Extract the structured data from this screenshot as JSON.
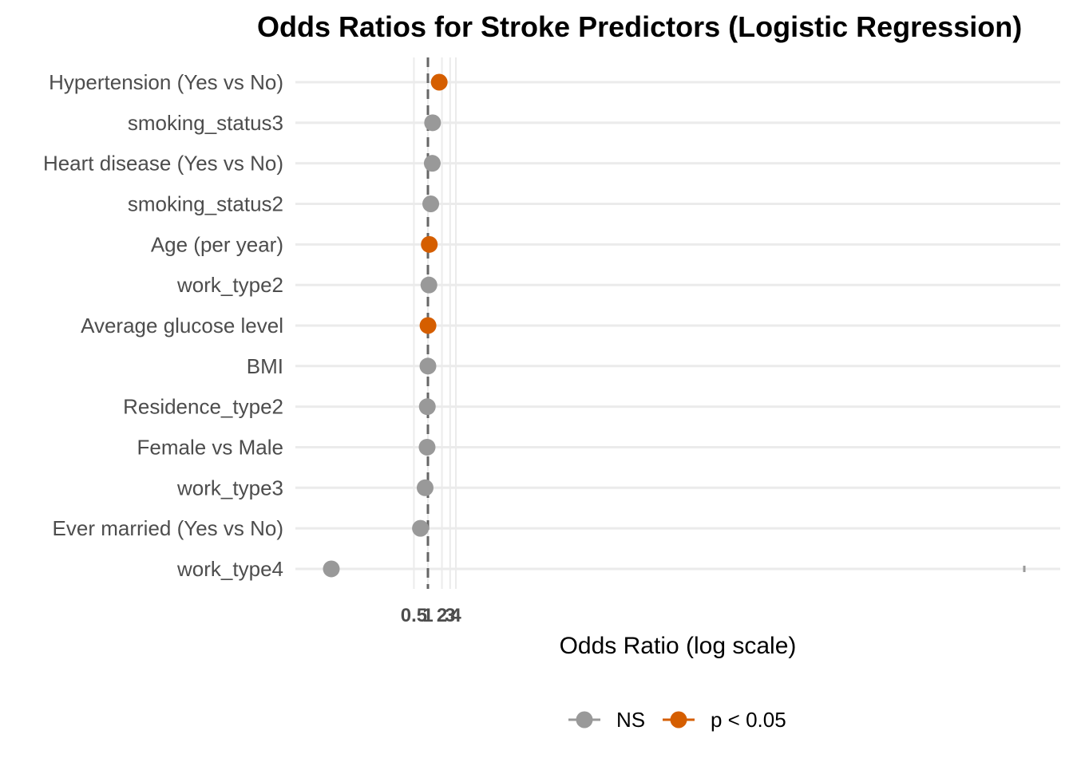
{
  "chart_data": {
    "type": "scatter",
    "title": "Odds Ratios for Stroke Predictors (Logistic Regression)",
    "xlabel": "Odds Ratio (log scale)",
    "ylabel": "",
    "x_scale": "log",
    "x_tick_labels": [
      "0.5",
      "1",
      "2",
      "3",
      "4"
    ],
    "reference_line_x": 1,
    "legend": {
      "placement": "bottom",
      "entries": [
        {
          "name": "NS",
          "color": "#999999"
        },
        {
          "name": "p < 0.05",
          "color": "#d55e00"
        }
      ]
    },
    "categories": [
      "Hypertension (Yes vs No)",
      "smoking_status3",
      "Heart disease (Yes vs No)",
      "smoking_status2",
      "Age (per year)",
      "work_type2",
      "Average glucose level",
      "BMI",
      "Residence_type2",
      "Female vs Male",
      "work_type3",
      "Ever married (Yes vs No)",
      "work_type4"
    ],
    "points": [
      {
        "label": "Hypertension (Yes vs No)",
        "odds_ratio": 1.75,
        "group": "p < 0.05"
      },
      {
        "label": "smoking_status3",
        "odds_ratio": 1.26,
        "group": "NS"
      },
      {
        "label": "Heart disease (Yes vs No)",
        "odds_ratio": 1.24,
        "group": "NS"
      },
      {
        "label": "smoking_status2",
        "odds_ratio": 1.15,
        "group": "NS"
      },
      {
        "label": "Age (per year)",
        "odds_ratio": 1.07,
        "group": "p < 0.05"
      },
      {
        "label": "work_type2",
        "odds_ratio": 1.05,
        "group": "NS"
      },
      {
        "label": "Average glucose level",
        "odds_ratio": 1.004,
        "group": "p < 0.05"
      },
      {
        "label": "BMI",
        "odds_ratio": 1.0,
        "group": "NS"
      },
      {
        "label": "Residence_type2",
        "odds_ratio": 0.97,
        "group": "NS"
      },
      {
        "label": "Female vs Male",
        "odds_ratio": 0.96,
        "group": "NS"
      },
      {
        "label": "work_type3",
        "odds_ratio": 0.87,
        "group": "NS"
      },
      {
        "label": "Ever married (Yes vs No)",
        "odds_ratio": 0.69,
        "group": "NS"
      },
      {
        "label": "work_type4",
        "odds_ratio": 5e-06,
        "group": "NS",
        "ci_upper": 1e+23
      }
    ]
  }
}
